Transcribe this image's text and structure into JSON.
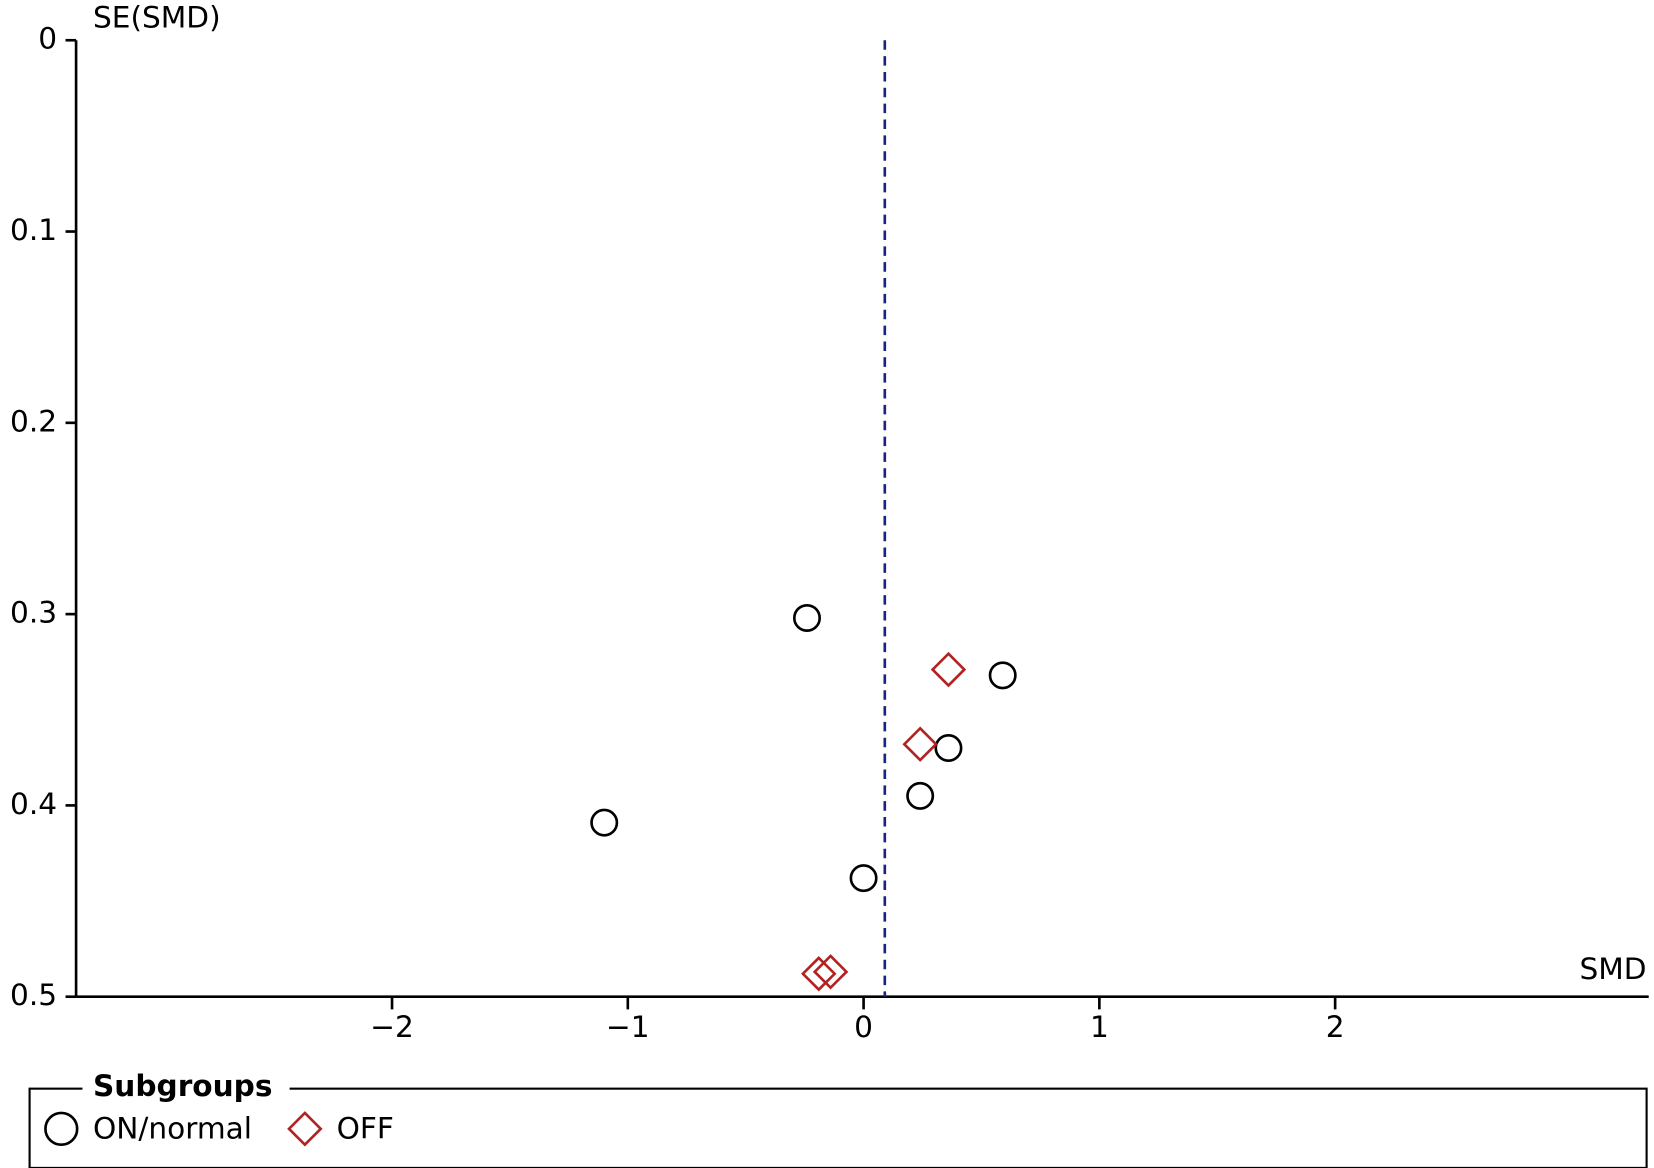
{
  "chart_data": {
    "type": "scatter",
    "x_label": "SMD",
    "y_label": "SE(SMD)",
    "xlim": [
      -3.34,
      3.33
    ],
    "xticks": [
      {
        "value": -2,
        "label": "−2"
      },
      {
        "value": -1,
        "label": "−1"
      },
      0,
      1,
      2
    ],
    "ylim": [
      0,
      0.5
    ],
    "yticks": [
      0,
      0.1,
      0.2,
      0.3,
      0.4,
      0.5
    ],
    "y_reversed": true,
    "reference_line": 0.09,
    "reference_color": "#1a237e",
    "legend_title": "Subgroups",
    "series": [
      {
        "name": "ON/normal",
        "color": "#000000",
        "marker": "circle",
        "x": [
          -0.24,
          0.59,
          0.36,
          0.24,
          -1.1,
          0.0
        ],
        "values": [
          0.302,
          0.332,
          0.37,
          0.395,
          0.409,
          0.438
        ]
      },
      {
        "name": "OFF",
        "color": "#b22222",
        "marker": "diamond",
        "x": [
          0.36,
          0.24,
          -0.19,
          -0.14
        ],
        "values": [
          0.329,
          0.368,
          0.488,
          0.487
        ]
      }
    ]
  }
}
